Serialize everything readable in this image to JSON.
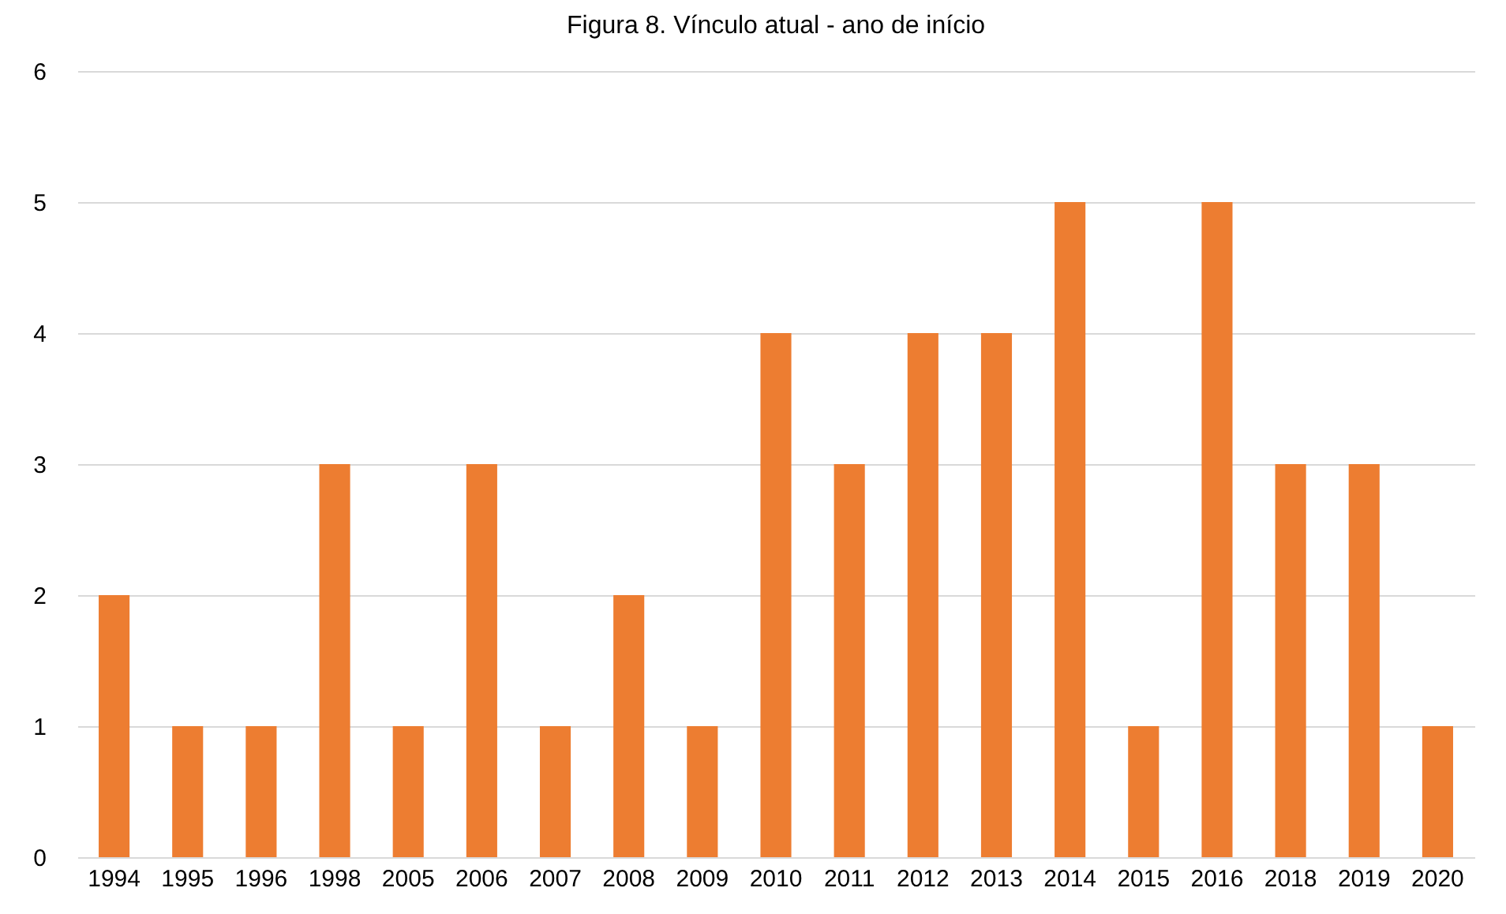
{
  "chart_data": {
    "type": "bar",
    "title": "Figura 8. Vínculo atual - ano de início",
    "categories": [
      "1994",
      "1995",
      "1996",
      "1998",
      "2005",
      "2006",
      "2007",
      "2008",
      "2009",
      "2010",
      "2011",
      "2012",
      "2013",
      "2014",
      "2015",
      "2016",
      "2018",
      "2019",
      "2020"
    ],
    "values": [
      2,
      1,
      1,
      3,
      1,
      3,
      1,
      2,
      1,
      4,
      3,
      4,
      4,
      5,
      1,
      5,
      3,
      3,
      1
    ],
    "color": "#ed7d31",
    "ylim": [
      0,
      6
    ],
    "yticks": [
      0,
      1,
      2,
      3,
      4,
      5,
      6
    ],
    "grid": "y"
  }
}
